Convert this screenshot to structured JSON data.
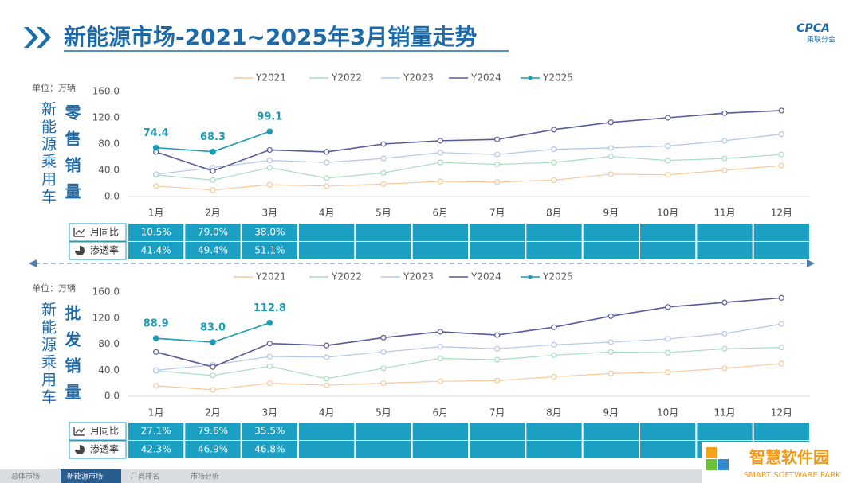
{
  "header": {
    "title": "新能源市场-2021~2025年3月销量走势",
    "logo": "CPCA",
    "logo_sub": "乘联分会"
  },
  "chart_data": [
    {
      "type": "line",
      "title": "零售销量",
      "subtitle": "新能源乘用车",
      "unit": "单位：万辆",
      "legend": "top",
      "categories": [
        "1月",
        "2月",
        "3月",
        "4月",
        "5月",
        "6月",
        "7月",
        "8月",
        "9月",
        "10月",
        "11月",
        "12月"
      ],
      "ylim": [
        0,
        160
      ],
      "yticks": [
        {
          "value": 0,
          "label": "0.0"
        },
        {
          "value": 40,
          "label": "40.0"
        },
        {
          "value": 80,
          "label": "80.0"
        },
        {
          "value": 120,
          "label": "120.0"
        },
        {
          "value": 160,
          "label": "160.0"
        }
      ],
      "series": [
        {
          "name": "Y2021",
          "color": "#f7c89b",
          "values": [
            16,
            10,
            18,
            16,
            19,
            23,
            22,
            25,
            34,
            33,
            40,
            47
          ]
        },
        {
          "name": "Y2022",
          "color": "#a8dcc0",
          "values": [
            33,
            25,
            44,
            28,
            36,
            52,
            49,
            52,
            61,
            55,
            58,
            64
          ]
        },
        {
          "name": "Y2023",
          "color": "#b2c6ea",
          "values": [
            34,
            44,
            55,
            52,
            58,
            67,
            64,
            72,
            74,
            77,
            85,
            95
          ]
        },
        {
          "name": "Y2024",
          "color": "#5a5a9a",
          "values": [
            68,
            39,
            71,
            68,
            80,
            85,
            87,
            102,
            113,
            120,
            127,
            131
          ]
        },
        {
          "name": "Y2025",
          "color": "#1b9bb4",
          "values": [
            74.4,
            68.3,
            99.1,
            null,
            null,
            null,
            null,
            null,
            null,
            null,
            null,
            null
          ],
          "value_labels": [
            "74.4",
            "68.3",
            "99.1",
            null,
            null,
            null,
            null,
            null,
            null,
            null,
            null,
            null
          ]
        }
      ]
    },
    {
      "type": "line",
      "title": "批发销量",
      "subtitle": "新能源乘用车",
      "unit": "单位：万辆",
      "legend": "top",
      "categories": [
        "1月",
        "2月",
        "3月",
        "4月",
        "5月",
        "6月",
        "7月",
        "8月",
        "9月",
        "10月",
        "11月",
        "12月"
      ],
      "ylim": [
        0,
        160
      ],
      "yticks": [
        {
          "value": 0,
          "label": "0.0"
        },
        {
          "value": 40,
          "label": "40.0"
        },
        {
          "value": 80,
          "label": "80.0"
        },
        {
          "value": 120,
          "label": "120.0"
        },
        {
          "value": 160,
          "label": "160.0"
        }
      ],
      "series": [
        {
          "name": "Y2021",
          "color": "#f7c89b",
          "values": [
            16,
            10,
            20,
            17,
            20,
            23,
            24,
            30,
            35,
            37,
            43,
            50
          ]
        },
        {
          "name": "Y2022",
          "color": "#a8dcc0",
          "values": [
            39,
            32,
            46,
            27,
            43,
            58,
            56,
            63,
            68,
            67,
            73,
            75
          ]
        },
        {
          "name": "Y2023",
          "color": "#b2c6ea",
          "values": [
            40,
            48,
            61,
            60,
            68,
            76,
            73,
            79,
            83,
            88,
            96,
            111
          ]
        },
        {
          "name": "Y2024",
          "color": "#5a5a9a",
          "values": [
            68,
            45,
            81,
            78,
            90,
            99,
            94,
            106,
            123,
            137,
            144,
            151
          ]
        },
        {
          "name": "Y2025",
          "color": "#1b9bb4",
          "values": [
            88.9,
            83,
            112.8,
            null,
            null,
            null,
            null,
            null,
            null,
            null,
            null,
            null
          ],
          "value_labels": [
            "88.9",
            "83.0",
            "112.8",
            null,
            null,
            null,
            null,
            null,
            null,
            null,
            null,
            null
          ]
        }
      ]
    }
  ],
  "tables": [
    {
      "rows": [
        {
          "label": "月同比",
          "cells": [
            "10.5%",
            "79.0%",
            "38.0%"
          ]
        },
        {
          "label": "渗透率",
          "cells": [
            "41.4%",
            "49.4%",
            "51.1%"
          ]
        }
      ]
    },
    {
      "rows": [
        {
          "label": "月同比",
          "cells": [
            "27.1%",
            "79.6%",
            "35.5%"
          ]
        },
        {
          "label": "渗透率",
          "cells": [
            "42.3%",
            "46.9%",
            "46.8%"
          ]
        }
      ]
    }
  ],
  "nav": [
    "总体市场",
    "新能源市场",
    "厂商排名",
    "市场分析"
  ],
  "watermark": {
    "title": "智慧软件园",
    "subtitle": "SMART SOFTWARE PARK"
  }
}
